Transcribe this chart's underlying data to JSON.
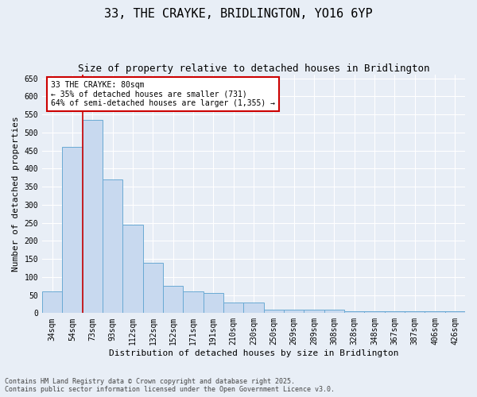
{
  "title": "33, THE CRAYKE, BRIDLINGTON, YO16 6YP",
  "subtitle": "Size of property relative to detached houses in Bridlington",
  "xlabel": "Distribution of detached houses by size in Bridlington",
  "ylabel": "Number of detached properties",
  "categories": [
    "34sqm",
    "54sqm",
    "73sqm",
    "93sqm",
    "112sqm",
    "132sqm",
    "152sqm",
    "171sqm",
    "191sqm",
    "210sqm",
    "230sqm",
    "250sqm",
    "269sqm",
    "289sqm",
    "308sqm",
    "328sqm",
    "348sqm",
    "367sqm",
    "387sqm",
    "406sqm",
    "426sqm"
  ],
  "values": [
    60,
    460,
    535,
    370,
    245,
    140,
    75,
    60,
    55,
    30,
    30,
    10,
    10,
    10,
    10,
    5,
    5,
    5,
    5,
    5,
    5
  ],
  "bar_color": "#c8d9ef",
  "bar_edge_color": "#6aaad4",
  "background_color": "#e8eef6",
  "grid_color": "#ffffff",
  "red_line_x": 1.5,
  "annotation_text": "33 THE CRAYKE: 80sqm\n← 35% of detached houses are smaller (731)\n64% of semi-detached houses are larger (1,355) →",
  "annotation_box_color": "#ffffff",
  "annotation_box_edge": "#cc0000",
  "ylim": [
    0,
    660
  ],
  "yticks": [
    0,
    50,
    100,
    150,
    200,
    250,
    300,
    350,
    400,
    450,
    500,
    550,
    600,
    650
  ],
  "footnote": "Contains HM Land Registry data © Crown copyright and database right 2025.\nContains public sector information licensed under the Open Government Licence v3.0.",
  "title_fontsize": 11,
  "subtitle_fontsize": 9,
  "axis_fontsize": 8,
  "tick_fontsize": 7,
  "annotation_fontsize": 7
}
